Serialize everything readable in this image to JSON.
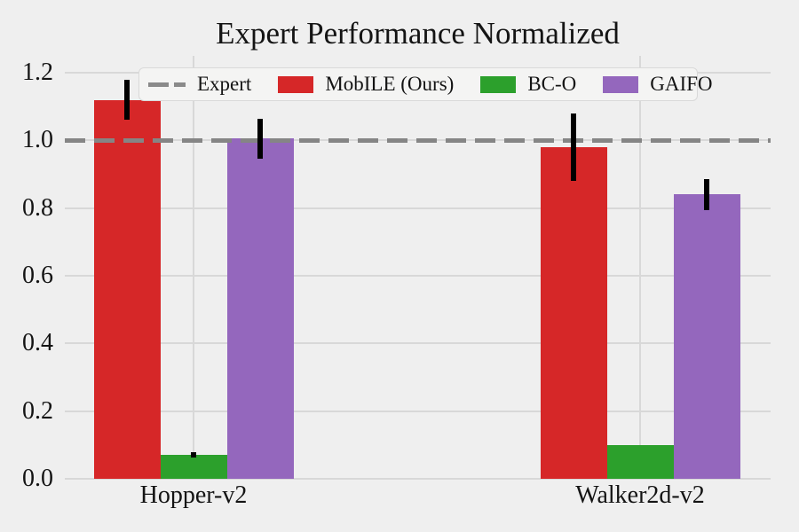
{
  "chart_data": {
    "type": "bar",
    "title": "Expert Performance Normalized",
    "categories": [
      "Hopper-v2",
      "Walker2d-v2"
    ],
    "series": [
      {
        "name": "MobILE (Ours)",
        "color": "#d62728",
        "values": [
          1.12,
          0.98
        ],
        "errors": [
          0.06,
          0.1
        ]
      },
      {
        "name": "BC-O",
        "color": "#2ca02c",
        "values": [
          0.07,
          0.1
        ],
        "errors": [
          0.008,
          0
        ]
      },
      {
        "name": "GAIFO",
        "color": "#9467bd",
        "values": [
          1.005,
          0.84
        ],
        "errors": [
          0.06,
          0.045
        ]
      }
    ],
    "reference_line": {
      "label": "Expert",
      "value": 1.0,
      "color": "#858585",
      "style": "dashed"
    },
    "yticks": [
      "0.0",
      "0.2",
      "0.4",
      "0.6",
      "0.8",
      "1.0",
      "1.2"
    ],
    "ylim": [
      0,
      1.25
    ],
    "grid": true,
    "legend_position": "top-inside",
    "colors": {
      "background": "#efefef",
      "gridline": "#d8d8d8",
      "error_bar": "#000000",
      "text": "#141414"
    }
  }
}
